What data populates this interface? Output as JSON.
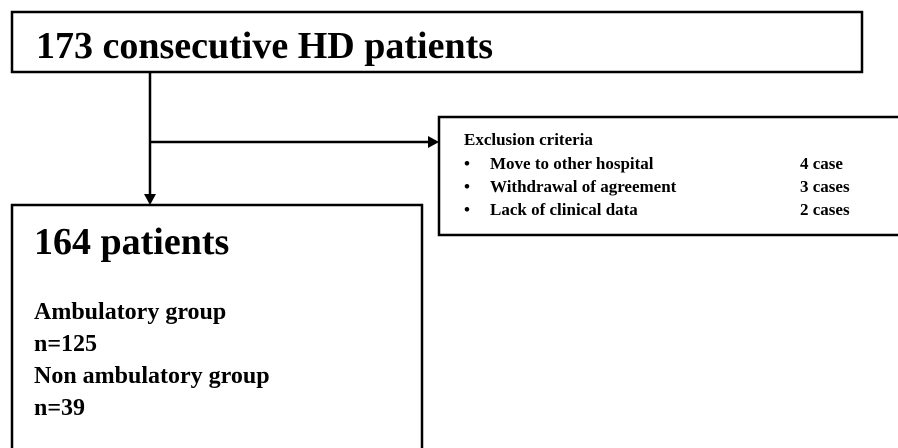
{
  "top_box": {
    "title": "173 consecutive HD patients"
  },
  "exclusion": {
    "title": "Exclusion criteria",
    "items": [
      {
        "label": "Move to other hospital",
        "count": "4 case"
      },
      {
        "label": "Withdrawal of agreement",
        "count": "3 cases"
      },
      {
        "label": "Lack of clinical data",
        "count": "2 cases"
      }
    ]
  },
  "result_box": {
    "title": "164 patients",
    "lines": [
      "Ambulatory group",
      "n=125",
      "Non ambulatory group",
      "n=39"
    ]
  }
}
